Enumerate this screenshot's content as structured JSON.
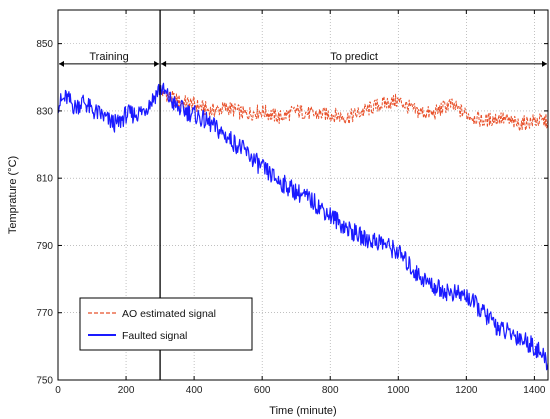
{
  "chart_data": {
    "type": "line",
    "xlabel": "Time (minute)",
    "ylabel": "Temprature (°C)",
    "xlim": [
      0,
      1440
    ],
    "ylim": [
      750,
      860
    ],
    "xticks": [
      0,
      200,
      400,
      600,
      800,
      1000,
      1200,
      1400
    ],
    "yticks": [
      750,
      770,
      790,
      810,
      830,
      850
    ],
    "grid": true,
    "legend_position": "bottom-left",
    "annotations": [
      {
        "text": "Training",
        "x_start": 0,
        "x_end": 300,
        "y": 844
      },
      {
        "text": "To predict",
        "x_start": 300,
        "x_end": 1440,
        "y": 844
      }
    ],
    "divider_x": 300,
    "series": [
      {
        "name": "AO estimated signal",
        "color": "#e8502a",
        "style": "dashed",
        "x": [
          300,
          350,
          400,
          450,
          500,
          550,
          600,
          650,
          700,
          750,
          800,
          850,
          900,
          950,
          1000,
          1050,
          1100,
          1150,
          1200,
          1250,
          1300,
          1350,
          1400,
          1440
        ],
        "y": [
          836,
          833,
          832,
          830,
          831,
          829,
          830,
          828,
          830,
          829,
          829,
          828,
          830,
          832,
          833,
          830,
          829,
          832,
          829,
          827,
          828,
          826,
          827,
          827
        ]
      },
      {
        "name": "Faulted signal",
        "color": "#1a1aff",
        "style": "solid",
        "x": [
          0,
          25,
          50,
          75,
          100,
          125,
          150,
          175,
          200,
          225,
          250,
          275,
          300,
          325,
          350,
          375,
          400,
          450,
          500,
          550,
          600,
          650,
          700,
          750,
          800,
          850,
          900,
          950,
          1000,
          1050,
          1100,
          1150,
          1200,
          1250,
          1300,
          1350,
          1400,
          1440
        ],
        "y": [
          832,
          834,
          831,
          833,
          830,
          829,
          827,
          826,
          829,
          829,
          830,
          833,
          837,
          834,
          831,
          830,
          829,
          826,
          822,
          818,
          813,
          809,
          806,
          803,
          799,
          795,
          792,
          791,
          788,
          782,
          778,
          776,
          775,
          770,
          765,
          763,
          760,
          755
        ]
      }
    ]
  }
}
